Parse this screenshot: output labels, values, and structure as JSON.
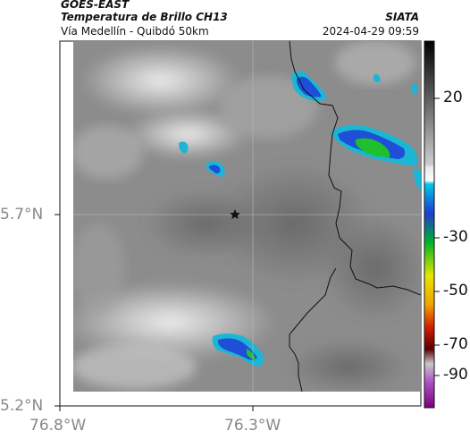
{
  "header": {
    "satellite": "GOES-EAST",
    "product": "Temperatura de Brillo CH13",
    "region": "Vía Medellín - Quibdó 50km",
    "organization": "SIATA",
    "timestamp": "2024-04-29 09:59"
  },
  "axes": {
    "lat_ticks": [
      "5.7°N",
      "5.2°N"
    ],
    "lon_ticks": [
      "76.8°W",
      "76.3°W"
    ]
  },
  "colorbar": {
    "labels": [
      "20",
      "-30",
      "-50",
      "-70",
      "-90"
    ]
  },
  "marker": {
    "icon": "star-icon"
  },
  "colors": {
    "cloud_cyan": "#1bb6d6",
    "cloud_blue": "#1e4fd6",
    "cloud_green": "#1fbf2e",
    "border": "#111111"
  }
}
